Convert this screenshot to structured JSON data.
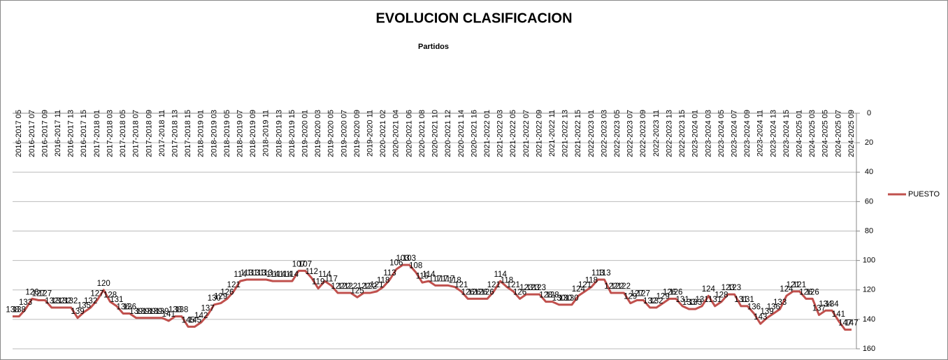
{
  "chart_data": {
    "type": "line",
    "title": "EVOLUCION CLASIFICACION",
    "x_axis_label": "Partidos",
    "categories": [
      null,
      "2016-2017 05",
      null,
      "2016-2017 07",
      null,
      "2016-2017 09",
      null,
      "2016-2017 11",
      null,
      "2016-2017 13",
      null,
      "2016-2017 15",
      null,
      "2017-2018 01",
      null,
      "2017-2018 03",
      null,
      "2017-2018 05",
      null,
      "2017-2018 07",
      null,
      "2017-2018 09",
      null,
      "2017-2018 11",
      null,
      "2017-2018 13",
      null,
      "2017-2018 15",
      null,
      "2018-2019 01",
      null,
      "2018-2019 03",
      null,
      "2018-2019 05",
      null,
      "2018-2019 07",
      null,
      "2018-2019 09",
      null,
      "2018-2019 11",
      null,
      "2018-2019 13",
      null,
      "2018-2019 15",
      null,
      "2019-2020 01",
      null,
      "2019-2020 03",
      null,
      "2019-2020 05",
      null,
      "2019-2020 07",
      null,
      "2019-2020 09",
      null,
      "2019-2020 11",
      null,
      "2020-2021 02",
      null,
      "2020-2021 04",
      null,
      "2020-2021 06",
      null,
      "2020-2021 08",
      null,
      "2020-2021 10",
      null,
      "2020-2021 12",
      null,
      "2020-2021 14",
      null,
      "2020-2021 16",
      null,
      "2021-2022 01",
      null,
      "2021-2022 03",
      null,
      "2021-2022 05",
      null,
      "2021-2022 07",
      null,
      "2021-2022 09",
      null,
      "2021-2022 11",
      null,
      "2021-2022 13",
      null,
      "2021-2022 15",
      null,
      "2022-2023 01",
      null,
      "2022-2023 03",
      null,
      "2022-2023 05",
      null,
      "2022-2023 07",
      null,
      "2022-2023 09",
      null,
      "2022-2023 11",
      null,
      "2022-2023 13",
      null,
      "2022-2023 15",
      null,
      "2023-2024 01",
      null,
      "2023-2024 03",
      null,
      "2023-2024 05",
      null,
      "2023-2024 07",
      null,
      "2023-2024 09",
      null,
      "2023-2024 11",
      null,
      "2023-2024 13",
      null,
      "2023-2024 15",
      null,
      "2024-2025 01",
      null,
      "2024-2025 03",
      null,
      "2024-2025 05",
      null,
      "2024-2025 07",
      null,
      "2024-2025 09"
    ],
    "series": [
      {
        "name": "PUESTO",
        "color": "#c0504d",
        "values": [
          138,
          138,
          133,
          126,
          127,
          127,
          132,
          132,
          132,
          132,
          139,
          135,
          132,
          127,
          120,
          128,
          131,
          136,
          136,
          139,
          139,
          139,
          139,
          139,
          141,
          138,
          138,
          145,
          145,
          142,
          137,
          130,
          129,
          126,
          121,
          114,
          113,
          113,
          113,
          113,
          114,
          114,
          114,
          114,
          107,
          107,
          112,
          119,
          114,
          117,
          122,
          122,
          122,
          125,
          122,
          122,
          121,
          118,
          113,
          106,
          103,
          103,
          108,
          115,
          114,
          117,
          117,
          117,
          118,
          121,
          126,
          126,
          126,
          126,
          121,
          114,
          118,
          121,
          126,
          123,
          123,
          123,
          128,
          128,
          130,
          130,
          130,
          124,
          121,
          118,
          113,
          113,
          122,
          122,
          122,
          129,
          127,
          127,
          132,
          132,
          129,
          126,
          126,
          131,
          133,
          133,
          131,
          124,
          131,
          128,
          123,
          123,
          131,
          131,
          136,
          143,
          139,
          136,
          133,
          124,
          121,
          121,
          126,
          126,
          137,
          134,
          134,
          141,
          147,
          147
        ]
      }
    ],
    "ylim": [
      0,
      160
    ],
    "yticks": [
      0,
      20,
      40,
      60,
      80,
      100,
      120,
      140,
      160
    ],
    "y_inverted": true,
    "y_axis_side": "right",
    "grid": true,
    "legend": "right"
  }
}
